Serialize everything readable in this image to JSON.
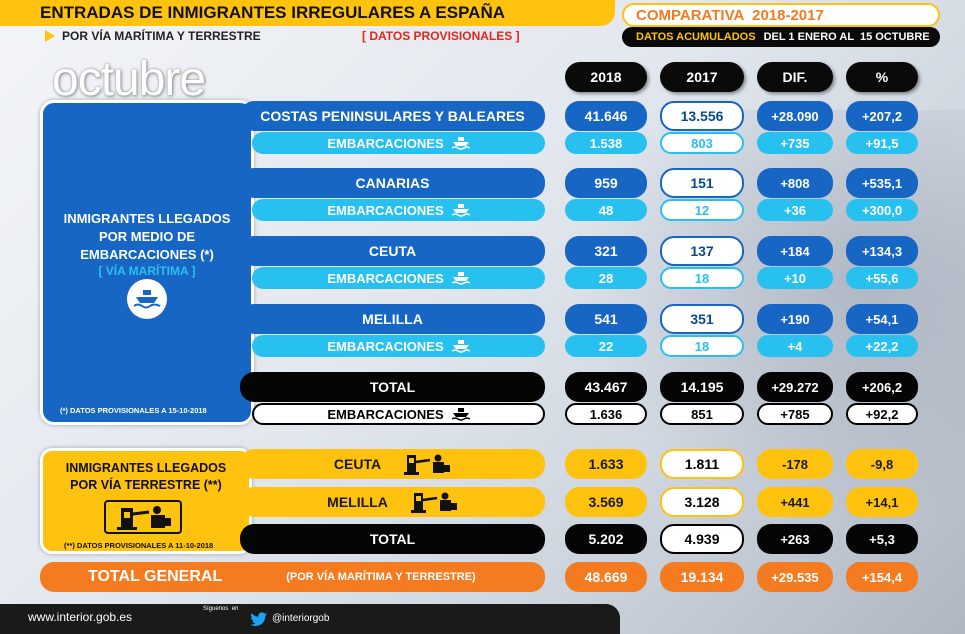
{
  "header": {
    "title": "ENTRADAS DE INMIGRANTES IRREGULARES A ESPAÑA",
    "subtitle": "POR VÍA MARÍTIMA Y TERRESTRE",
    "provisional": "[ DATOS PROVISIONALES ]",
    "comparativa": "COMPARATIVA  2018-2017",
    "acumulados_label": "DATOS ACUMULADOS",
    "acumulados_range": "DEL 1 ENERO AL  15 OCTUBRE",
    "month": "octubre"
  },
  "columns": {
    "c2018": "2018",
    "c2017": "2017",
    "dif": "DIF.",
    "pct": "%"
  },
  "maritime_panel": {
    "title": "INMIGRANTES LLEGADOS POR MEDIO DE EMBARCACIONES (*)",
    "sub": "[ VÍA MARÍTIMA ]",
    "note": "(*)  DATOS PROVISIONALES A 15-10-2018"
  },
  "land_panel": {
    "title": "INMIGRANTES LLEGADOS POR VÍA TERRESTRE (**)",
    "note": "(**)  DATOS PROVISIONALES A 11-10-2018"
  },
  "rows": {
    "costas": {
      "label": "COSTAS PENINSULARES Y BALEARES",
      "v2018": "41.646",
      "v2017": "13.556",
      "dif": "+28.090",
      "pct": "+207,2"
    },
    "costas_emb": {
      "label": "EMBARCACIONES",
      "v2018": "1.538",
      "v2017": "803",
      "dif": "+735",
      "pct": "+91,5"
    },
    "canarias": {
      "label": "CANARIAS",
      "v2018": "959",
      "v2017": "151",
      "dif": "+808",
      "pct": "+535,1"
    },
    "canarias_emb": {
      "label": "EMBARCACIONES",
      "v2018": "48",
      "v2017": "12",
      "dif": "+36",
      "pct": "+300,0"
    },
    "ceuta": {
      "label": "CEUTA",
      "v2018": "321",
      "v2017": "137",
      "dif": "+184",
      "pct": "+134,3"
    },
    "ceuta_emb": {
      "label": "EMBARCACIONES",
      "v2018": "28",
      "v2017": "18",
      "dif": "+10",
      "pct": "+55,6"
    },
    "melilla": {
      "label": "MELILLA",
      "v2018": "541",
      "v2017": "351",
      "dif": "+190",
      "pct": "+54,1"
    },
    "melilla_emb": {
      "label": "EMBARCACIONES",
      "v2018": "22",
      "v2017": "18",
      "dif": "+4",
      "pct": "+22,2"
    },
    "total_mar": {
      "label": "TOTAL",
      "v2018": "43.467",
      "v2017": "14.195",
      "dif": "+29.272",
      "pct": "+206,2"
    },
    "total_mar_emb": {
      "label": "EMBARCACIONES",
      "v2018": "1.636",
      "v2017": "851",
      "dif": "+785",
      "pct": "+92,2"
    },
    "ceuta_t": {
      "label": "CEUTA",
      "v2018": "1.633",
      "v2017": "1.811",
      "dif": "-178",
      "pct": "-9,8"
    },
    "melilla_t": {
      "label": "MELILLA",
      "v2018": "3.569",
      "v2017": "3.128",
      "dif": "+441",
      "pct": "+14,1"
    },
    "total_t": {
      "label": "TOTAL",
      "v2018": "5.202",
      "v2017": "4.939",
      "dif": "+263",
      "pct": "+5,3"
    },
    "general": {
      "label": "TOTAL GENERAL",
      "sub": "(POR VÍA MARÍTIMA Y TERRESTRE)",
      "v2018": "48.669",
      "v2017": "19.134",
      "dif": "+29.535",
      "pct": "+154,4"
    }
  },
  "footer": {
    "site": "www.interior.gob.es",
    "follow": "Síguenos  en",
    "handle": "@interiorgob"
  },
  "colors": {
    "blue": "#1766c4",
    "light_blue": "#28c0ef",
    "yellow": "#ffc20e",
    "orange": "#f47b20",
    "black": "#050505"
  },
  "icons": [
    "boat-icon",
    "border-crossing-icon",
    "twitter-icon"
  ]
}
